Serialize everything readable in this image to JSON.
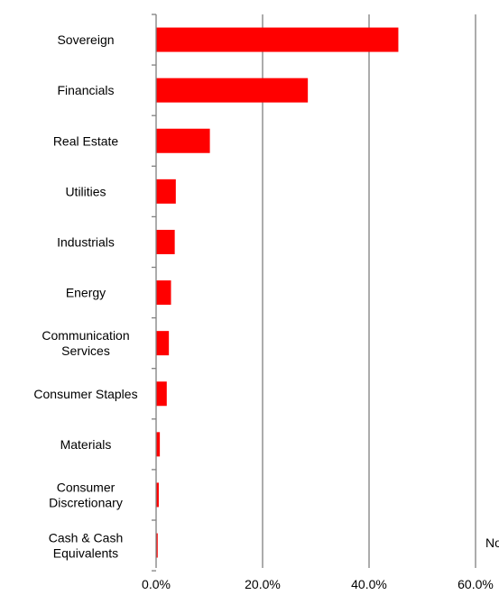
{
  "chart_data": {
    "type": "bar",
    "orientation": "horizontal",
    "categories": [
      [
        "Sovereign"
      ],
      [
        "Financials"
      ],
      [
        "Real Estate"
      ],
      [
        "Utilities"
      ],
      [
        "Industrials"
      ],
      [
        "Energy"
      ],
      [
        "Communication",
        "Services"
      ],
      [
        "Consumer Staples"
      ],
      [
        "Materials"
      ],
      [
        "Consumer",
        "Discretionary"
      ],
      [
        "Cash & Cash",
        "Equivalents"
      ]
    ],
    "values": [
      45.5,
      28.5,
      10.1,
      3.7,
      3.5,
      2.8,
      2.4,
      2.0,
      0.7,
      0.5,
      0.3
    ],
    "xlim": [
      0,
      60
    ],
    "xticks": [
      "0.0%",
      "20.0%",
      "40.0%",
      "60.0%"
    ],
    "xtick_values": [
      0,
      20,
      40,
      60
    ],
    "bar_color": "#ff0000",
    "grid": "vertical",
    "grid_color": "#808080",
    "title": "",
    "xlabel": "",
    "ylabel": ""
  },
  "note_text": "No"
}
